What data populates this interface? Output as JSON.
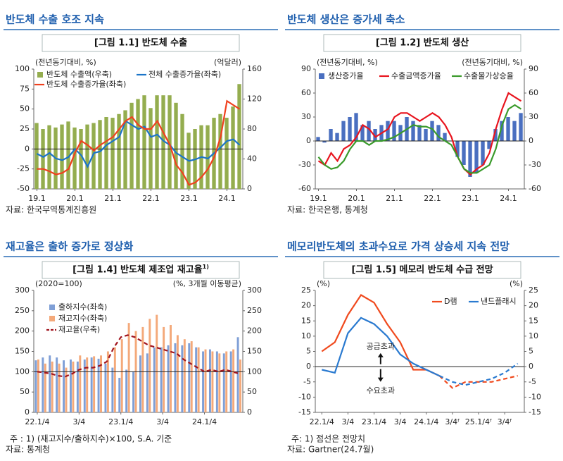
{
  "chart_data": [
    {
      "type": "combo",
      "section_title": "반도체 수출 호조 지속",
      "title": "[그림 1.1] 반도체 수출",
      "y_label": "(전년동기대비, %)",
      "y2_label": "(억달러)",
      "categories": [
        "19.1",
        null,
        null,
        null,
        null,
        null,
        "20.1",
        null,
        null,
        null,
        null,
        null,
        "21.1",
        null,
        null,
        null,
        null,
        null,
        "22.1",
        null,
        null,
        null,
        null,
        null,
        "23.1",
        null,
        null,
        null,
        null,
        null,
        "24.1",
        null,
        null
      ],
      "ylim": [
        -50,
        100
      ],
      "yticks": [
        -50,
        -25,
        0,
        25,
        50,
        75,
        100
      ],
      "y2lim": [
        0,
        160
      ],
      "y2ticks": [
        0,
        40,
        80,
        120,
        160
      ],
      "legend": "upper left",
      "series": [
        {
          "name": "반도체 수출액(우축)",
          "kind": "bar",
          "axis": "y2",
          "color": "#94ad4f",
          "values": [
            88,
            80,
            85,
            82,
            86,
            90,
            82,
            80,
            86,
            88,
            92,
            96,
            95,
            100,
            105,
            115,
            120,
            125,
            108,
            125,
            125,
            125,
            115,
            100,
            75,
            80,
            85,
            85,
            95,
            100,
            95,
            110,
            140
          ]
        },
        {
          "name": "전체 수출증가율(좌축)",
          "kind": "line",
          "color": "#1b74c8",
          "values": [
            -6,
            -10,
            -5,
            -12,
            -14,
            -10,
            0,
            -8,
            -22,
            -5,
            -3,
            5,
            10,
            15,
            35,
            30,
            25,
            28,
            15,
            18,
            10,
            5,
            -5,
            -10,
            -15,
            -13,
            -10,
            -12,
            -5,
            2,
            10,
            12,
            5
          ]
        },
        {
          "name": "반도체 수출증가율(좌축)",
          "kind": "line",
          "color": "#f0401e",
          "values": [
            -25,
            -25,
            -28,
            -32,
            -30,
            -25,
            -5,
            10,
            5,
            -2,
            5,
            10,
            15,
            25,
            35,
            40,
            30,
            25,
            25,
            35,
            20,
            5,
            -20,
            -30,
            -45,
            -42,
            -35,
            -25,
            -10,
            15,
            60,
            55,
            50
          ]
        }
      ],
      "source": "자료: 한국무역통계진흥원"
    },
    {
      "type": "combo",
      "section_title": "반도체 생산은 증가세 축소",
      "title": "[그림 1.2] 반도체 생산",
      "y_label": "(전년동기대비, %)",
      "y2_label": "(전년동기대비, %)",
      "categories": [
        "19.1",
        null,
        null,
        null,
        null,
        null,
        "20.1",
        null,
        null,
        null,
        null,
        null,
        "21.1",
        null,
        null,
        null,
        null,
        null,
        "22.1",
        null,
        null,
        null,
        null,
        null,
        "23.1",
        null,
        null,
        null,
        null,
        null,
        "24.1",
        null,
        null
      ],
      "ylim": [
        -60,
        90
      ],
      "yticks": [
        -60,
        -30,
        0,
        30,
        60,
        90
      ],
      "y2lim": [
        -60,
        90
      ],
      "y2ticks": [
        -60,
        -30,
        0,
        30,
        60,
        90
      ],
      "legend": "upper left",
      "series": [
        {
          "name": "생산증가율",
          "kind": "bar",
          "color": "#4a6fc0",
          "values": [
            5,
            -2,
            15,
            10,
            25,
            30,
            35,
            20,
            25,
            15,
            20,
            25,
            25,
            20,
            30,
            25,
            20,
            15,
            25,
            20,
            10,
            0,
            -20,
            -30,
            -45,
            -40,
            -30,
            -10,
            15,
            25,
            30,
            25,
            35
          ]
        },
        {
          "name": "수출금액증가율",
          "kind": "line",
          "color": "#e8141e",
          "values": [
            -25,
            -30,
            -15,
            -25,
            -10,
            -5,
            5,
            20,
            15,
            5,
            10,
            15,
            30,
            35,
            35,
            30,
            25,
            30,
            35,
            30,
            20,
            5,
            -20,
            -35,
            -42,
            -35,
            -30,
            -15,
            15,
            40,
            60,
            55,
            50
          ]
        },
        {
          "name": "수출물가상승율",
          "kind": "line",
          "color": "#3a9a2a",
          "values": [
            -20,
            -30,
            -35,
            -33,
            -25,
            -10,
            0,
            0,
            -5,
            0,
            0,
            2,
            5,
            10,
            15,
            20,
            18,
            18,
            15,
            5,
            0,
            -5,
            -20,
            -35,
            -40,
            -40,
            -35,
            -30,
            -10,
            20,
            40,
            45,
            40
          ]
        }
      ],
      "source": "자료: 한국은행, 통계청"
    },
    {
      "type": "combo",
      "section_title": "재고율은 출하 증가로 정상화",
      "title": "[그림 1.4] 반도체 제조업 재고율",
      "title_superscript": "1)",
      "y_label": "(2020=100)",
      "y2_label": "(%, 3개월 이동평균)",
      "categories": [
        "22.1/4",
        null,
        null,
        null,
        null,
        null,
        "3/4",
        null,
        null,
        null,
        null,
        null,
        "23.1/4",
        null,
        null,
        null,
        null,
        null,
        "3/4",
        null,
        null,
        null,
        null,
        null,
        "24.1/4",
        null,
        null,
        null,
        null,
        null
      ],
      "ylim": [
        0,
        300
      ],
      "yticks": [
        0,
        50,
        100,
        150,
        200,
        250,
        300
      ],
      "y2lim": [
        0,
        300
      ],
      "y2ticks": [
        0,
        50,
        100,
        150,
        200,
        250,
        300
      ],
      "reference_line": 100,
      "legend": "upper left",
      "series": [
        {
          "name": "출하지수(좌축)",
          "kind": "bar",
          "color": "#7f9fd6",
          "values": [
            128,
            135,
            140,
            135,
            128,
            130,
            125,
            130,
            135,
            132,
            120,
            110,
            85,
            105,
            100,
            140,
            145,
            160,
            160,
            165,
            170,
            165,
            170,
            160,
            150,
            155,
            150,
            145,
            150,
            185
          ]
        },
        {
          "name": "재고지수(좌축)",
          "kind": "bar",
          "color": "#f4a97a",
          "values": [
            130,
            120,
            125,
            120,
            110,
            125,
            140,
            135,
            138,
            140,
            150,
            160,
            180,
            220,
            200,
            210,
            230,
            240,
            210,
            215,
            190,
            180,
            175,
            160,
            155,
            150,
            145,
            150,
            155,
            130
          ]
        },
        {
          "name": "재고율(우축)",
          "kind": "line",
          "axis": "y2",
          "dash": true,
          "color": "#a0141e",
          "values": [
            100,
            98,
            95,
            90,
            88,
            95,
            105,
            110,
            110,
            115,
            125,
            160,
            185,
            190,
            185,
            175,
            165,
            160,
            155,
            150,
            145,
            130,
            120,
            110,
            100,
            105,
            100,
            105,
            100,
            95
          ]
        }
      ],
      "note": "주 : 1) (재고지수/출하지수)×100, S.A. 기준",
      "source": "자료: 통계청"
    },
    {
      "type": "line",
      "section_title": "메모리반도체의 초과수요로 가격 상승세 지속 전망",
      "title": "[그림 1.5] 메모리 반도체 수급 전망",
      "y_label": "(%)",
      "y2_label": "(%)",
      "categories": [
        "22.1/4",
        null,
        "3/4",
        null,
        "23.1/4",
        null,
        "3/4",
        null,
        "24.1/4",
        null,
        "3/4ᶠ",
        null,
        "25.1/4ᶠ",
        null,
        "3/4ᶠ",
        null
      ],
      "ylim": [
        -15,
        25
      ],
      "yticks": [
        -15,
        -10,
        -5,
        0,
        5,
        10,
        15,
        20,
        25
      ],
      "y2lim": [
        -15,
        25
      ],
      "y2ticks": [
        -15,
        -10,
        -5,
        0,
        5,
        10,
        15,
        20,
        25
      ],
      "forecast_from": 9,
      "legend": "upper right",
      "series": [
        {
          "name": "D램",
          "kind": "line",
          "color": "#f04a1e",
          "values": [
            5,
            8,
            17,
            23.5,
            21,
            14,
            8,
            -1,
            -1,
            -3,
            -7,
            -5,
            -5,
            -5,
            -4,
            -3
          ]
        },
        {
          "name": "낸드플래시",
          "kind": "line",
          "color": "#2a7ad0",
          "values": [
            -1,
            -2,
            11,
            16,
            14,
            10,
            4,
            1,
            -1,
            -3,
            -5,
            -6,
            -5,
            -4,
            -2,
            1
          ]
        }
      ],
      "annotations": [
        "공급초과",
        "수요초과"
      ],
      "note": "주: 1) 점선은 전망치",
      "source": "자료: Gartner(24.7월)"
    }
  ]
}
